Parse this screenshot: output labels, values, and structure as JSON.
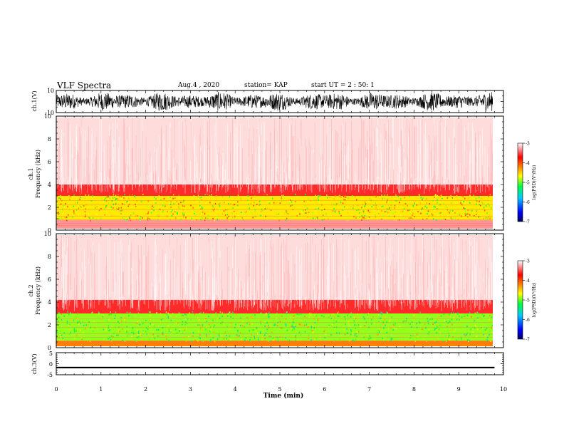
{
  "header": {
    "title": "VLF Spectra",
    "date": "Aug.4 , 2020",
    "station": "station= KAP",
    "start": "start UT = 2 : 50: 1"
  },
  "colors": {
    "spectrogram_scale": [
      "#000080",
      "#0000ff",
      "#00c0ff",
      "#00ff00",
      "#ffff00",
      "#ff8000",
      "#ff0000",
      "#ffffff"
    ]
  },
  "chart_data": [
    {
      "type": "line",
      "panel": "waveform-ch1",
      "ylabel": "ch.1(V)",
      "ylim": [
        -10,
        10
      ],
      "yticks": [
        "10",
        "-10"
      ],
      "xlim": [
        0,
        10
      ]
    },
    {
      "type": "heatmap",
      "panel": "spectrogram-ch1",
      "ylabel": "ch.1\nFrequency (kHz)",
      "ylim": [
        0,
        10
      ],
      "yticks": [
        "0",
        "2",
        "4",
        "6",
        "8",
        "10"
      ],
      "xlim": [
        0,
        10
      ],
      "data_end_min": 9.8,
      "colorbar": {
        "label": "log(PSD)(V²/Hz)",
        "ticks": [
          "-3",
          "-4",
          "-5",
          "-6",
          "-7"
        ],
        "range": [
          -7,
          -3
        ]
      },
      "bands": [
        {
          "from_khz": 0.0,
          "to_khz": 0.9,
          "log_psd": -3.3
        },
        {
          "from_khz": 0.9,
          "to_khz": 3.0,
          "log_psd": -4.6
        },
        {
          "from_khz": 3.0,
          "to_khz": 4.0,
          "log_psd": -3.6
        },
        {
          "from_khz": 4.0,
          "to_khz": 10.0,
          "log_psd": -3.1
        }
      ]
    },
    {
      "type": "heatmap",
      "panel": "spectrogram-ch2",
      "ylabel": "ch.2\nFrequency (kHz)",
      "ylim": [
        0,
        10
      ],
      "yticks": [
        "0",
        "2",
        "4",
        "6",
        "8",
        "10"
      ],
      "xlim": [
        0,
        10
      ],
      "data_end_min": 9.8,
      "colorbar": {
        "label": "log(PSD)(V²/Hz)",
        "ticks": [
          "-3",
          "-4",
          "-5",
          "-6",
          "-7"
        ],
        "range": [
          -7,
          -3
        ]
      },
      "bands": [
        {
          "from_khz": 0.0,
          "to_khz": 0.6,
          "log_psd": -4.2
        },
        {
          "from_khz": 0.6,
          "to_khz": 3.0,
          "log_psd": -4.9
        },
        {
          "from_khz": 3.0,
          "to_khz": 4.2,
          "log_psd": -3.6
        },
        {
          "from_khz": 4.2,
          "to_khz": 10.0,
          "log_psd": -3.1
        }
      ]
    },
    {
      "type": "line",
      "panel": "waveform-ch3",
      "ylabel": "ch.3(V)",
      "ylim": [
        -5,
        5
      ],
      "yticks": [
        "5",
        "0",
        "-5"
      ],
      "xlim": [
        0,
        10
      ],
      "band": [
        -2.1,
        -1.4
      ]
    }
  ],
  "xaxis": {
    "label": "Time (min)",
    "ticks": [
      "0",
      "1",
      "2",
      "3",
      "4",
      "5",
      "6",
      "7",
      "8",
      "9",
      "10"
    ]
  }
}
